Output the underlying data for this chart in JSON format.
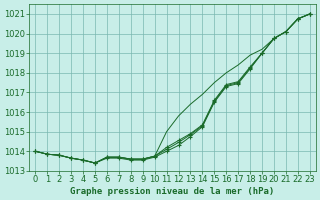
{
  "title": "Graphe pression niveau de la mer (hPa)",
  "bg_color": "#c8eee8",
  "grid_color": "#7ab8b0",
  "line_color": "#1a6b2a",
  "tick_fontsize": 6,
  "xlim": [
    -0.5,
    23.5
  ],
  "ylim": [
    1013.0,
    1021.5
  ],
  "yticks": [
    1013,
    1014,
    1015,
    1016,
    1017,
    1018,
    1019,
    1020,
    1021
  ],
  "xticks": [
    0,
    1,
    2,
    3,
    4,
    5,
    6,
    7,
    8,
    9,
    10,
    11,
    12,
    13,
    14,
    15,
    16,
    17,
    18,
    19,
    20,
    21,
    22,
    23
  ],
  "line_main": [
    1014.0,
    1013.85,
    1013.8,
    1013.65,
    1013.55,
    1013.4,
    1013.7,
    1013.7,
    1013.6,
    1013.6,
    1013.75,
    1014.1,
    1014.45,
    1014.85,
    1015.3,
    1016.55,
    1017.35,
    1017.5,
    1018.25,
    1019.0,
    1019.75,
    1020.1,
    1020.75,
    1021.0
  ],
  "line_upper": [
    1014.0,
    1013.85,
    1013.8,
    1013.65,
    1013.55,
    1013.4,
    1013.7,
    1013.7,
    1013.6,
    1013.6,
    1013.75,
    1015.0,
    1015.8,
    1016.4,
    1016.9,
    1017.5,
    1018.0,
    1018.4,
    1018.9,
    1019.2,
    1019.75,
    1020.1,
    1020.75,
    1021.0
  ],
  "line_close1": [
    1014.0,
    1013.85,
    1013.8,
    1013.65,
    1013.55,
    1013.4,
    1013.7,
    1013.7,
    1013.6,
    1013.6,
    1013.75,
    1014.2,
    1014.55,
    1014.9,
    1015.35,
    1016.6,
    1017.4,
    1017.55,
    1018.3,
    1019.0,
    1019.75,
    1020.1,
    1020.75,
    1021.0
  ],
  "line_close2": [
    1014.0,
    1013.85,
    1013.8,
    1013.65,
    1013.55,
    1013.4,
    1013.65,
    1013.65,
    1013.55,
    1013.55,
    1013.7,
    1014.0,
    1014.3,
    1014.75,
    1015.25,
    1016.5,
    1017.3,
    1017.45,
    1018.2,
    1019.0,
    1019.75,
    1020.1,
    1020.75,
    1021.0
  ]
}
